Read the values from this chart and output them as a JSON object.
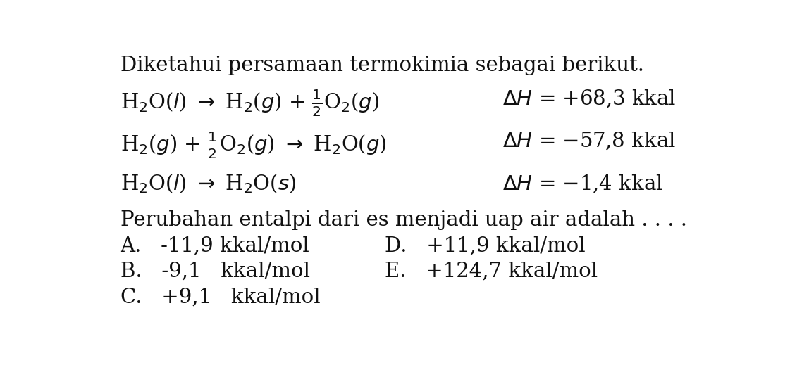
{
  "background_color": "#ffffff",
  "title_text": "Diketahui persamaan termokimia sebagai berikut.",
  "dH1": "+68,3 kkal",
  "dH2": "-57,8 kkal",
  "dH3": "-1,4 kkal",
  "question": "Perubahan entalpi dari es menjadi uap air adalah . . . .",
  "opt_A": "A.   -11,9 kkal/mol",
  "opt_B": "B.   -9,1   kkal/mol",
  "opt_C": "C.   +9,1   kkal/mol",
  "opt_D": "D.   +11,9 kkal/mol",
  "opt_E": "E.   +124,7 kkal/mol",
  "font_size": 21,
  "text_color": "#111111"
}
